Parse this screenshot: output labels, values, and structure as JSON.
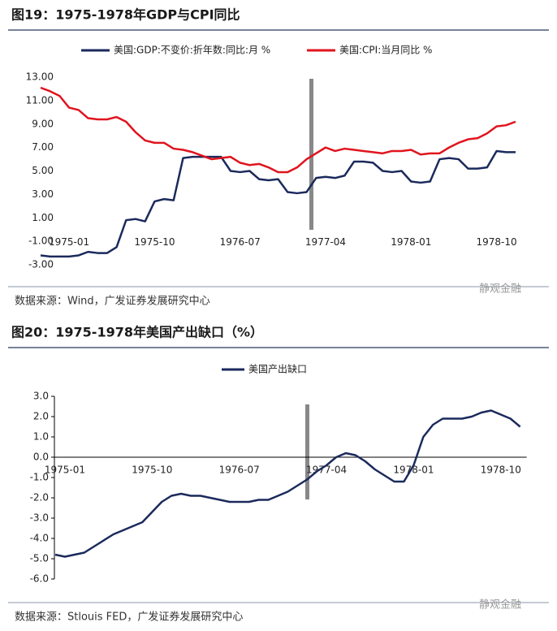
{
  "chart_data": [
    {
      "type": "line",
      "title": "图19：1975-1978年GDP与CPI同比",
      "source": "数据来源：Wind，广发证券发展研究中心",
      "categories": [
        null,
        null,
        null,
        "1975-01",
        null,
        null,
        null,
        null,
        null,
        null,
        null,
        null,
        "1975-10",
        null,
        null,
        null,
        null,
        null,
        null,
        null,
        null,
        "1976-07",
        null,
        null,
        null,
        null,
        null,
        null,
        null,
        null,
        "1977-04",
        null,
        null,
        null,
        null,
        null,
        null,
        null,
        null,
        "1978-01",
        null,
        null,
        null,
        null,
        null,
        null,
        null,
        null,
        "1978-10",
        null,
        null
      ],
      "series": [
        {
          "name": "美国:GDP:不变价:折年数:同比:月 %",
          "color": "#1b2a5c",
          "values": [
            -2.2,
            -2.3,
            -2.3,
            -2.3,
            -2.2,
            -1.9,
            -2.0,
            -2.0,
            -1.5,
            0.8,
            0.9,
            0.7,
            2.4,
            2.6,
            2.5,
            6.1,
            6.2,
            6.2,
            6.2,
            6.2,
            5.0,
            4.9,
            5.0,
            4.3,
            4.2,
            4.3,
            3.2,
            3.1,
            3.2,
            4.4,
            4.5,
            4.4,
            4.6,
            5.8,
            5.8,
            5.7,
            5.0,
            4.9,
            5.0,
            4.1,
            4.0,
            4.1,
            6.0,
            6.1,
            6.0,
            5.2,
            5.2,
            5.3,
            6.7,
            6.6,
            6.6
          ]
        },
        {
          "name": "美国:CPI:当月同比 %",
          "color": "#e0141e",
          "values": [
            12.1,
            11.8,
            11.4,
            10.4,
            10.2,
            9.5,
            9.4,
            9.4,
            9.6,
            9.2,
            8.3,
            7.6,
            7.4,
            7.4,
            6.9,
            6.8,
            6.6,
            6.3,
            6.0,
            6.1,
            6.2,
            5.7,
            5.5,
            5.6,
            5.3,
            4.9,
            4.9,
            5.3,
            6.0,
            6.5,
            7.0,
            6.7,
            6.9,
            6.8,
            6.7,
            6.6,
            6.5,
            6.7,
            6.7,
            6.8,
            6.4,
            6.5,
            6.5,
            7.0,
            7.4,
            7.7,
            7.8,
            8.2,
            8.8,
            8.9,
            9.2
          ]
        }
      ],
      "ylim": [
        -3,
        13
      ],
      "yticks": [
        {
          "value": 13,
          "label": "13.00"
        },
        {
          "value": 11,
          "label": "11.00"
        },
        {
          "value": 9,
          "label": "9.00"
        },
        {
          "value": 7,
          "label": "7.00"
        },
        {
          "value": 5,
          "label": "5.00"
        },
        {
          "value": 3,
          "label": "3.00"
        },
        {
          "value": 1,
          "label": "1.00"
        },
        {
          "value": -1,
          "label": "-1.00"
        },
        {
          "value": -3,
          "label": "-3.00"
        }
      ],
      "legend": "top"
    },
    {
      "type": "line",
      "title": "图20：1975-1978年美国产出缺口（%）",
      "source": "数据来源：Stlouis FED，广发证券发展研究中心",
      "categories": [
        null,
        "1975-01",
        null,
        null,
        null,
        null,
        null,
        null,
        null,
        null,
        "1975-10",
        null,
        null,
        null,
        null,
        null,
        null,
        null,
        null,
        "1976-07",
        null,
        null,
        null,
        null,
        null,
        null,
        null,
        null,
        "1977-04",
        null,
        null,
        null,
        null,
        null,
        null,
        null,
        null,
        "1978-01",
        null,
        null,
        null,
        null,
        null,
        null,
        null,
        null,
        "1978-10",
        null,
        null
      ],
      "series": [
        {
          "name": "美国产出缺口",
          "color": "#1b2a5c",
          "values": [
            -4.8,
            -4.9,
            -4.8,
            -4.7,
            -4.4,
            -4.1,
            -3.8,
            -3.6,
            -3.4,
            -3.2,
            -2.7,
            -2.2,
            -1.9,
            -1.8,
            -1.9,
            -1.9,
            -2.0,
            -2.1,
            -2.2,
            -2.2,
            -2.2,
            -2.1,
            -2.1,
            -1.9,
            -1.7,
            -1.4,
            -1.1,
            -0.7,
            -0.4,
            0.0,
            0.2,
            0.1,
            -0.2,
            -0.6,
            -0.9,
            -1.2,
            -1.2,
            -0.4,
            1.0,
            1.6,
            1.9,
            1.9,
            1.9,
            2.0,
            2.2,
            2.3,
            2.1,
            1.9,
            1.5
          ]
        }
      ],
      "ylim": [
        -6,
        3
      ],
      "yticks": [
        {
          "value": 3,
          "label": "3.0"
        },
        {
          "value": 2,
          "label": "2.0"
        },
        {
          "value": 1,
          "label": "1.0"
        },
        {
          "value": 0,
          "label": "0.0"
        },
        {
          "value": -1,
          "label": "-1.0"
        },
        {
          "value": -2,
          "label": "-2.0"
        },
        {
          "value": -3,
          "label": "-3.0"
        },
        {
          "value": -4,
          "label": "-4.0"
        },
        {
          "value": -5,
          "label": "-5.0"
        },
        {
          "value": -6,
          "label": "-6.0"
        }
      ],
      "legend": "top"
    }
  ],
  "watermark": "静观金融"
}
